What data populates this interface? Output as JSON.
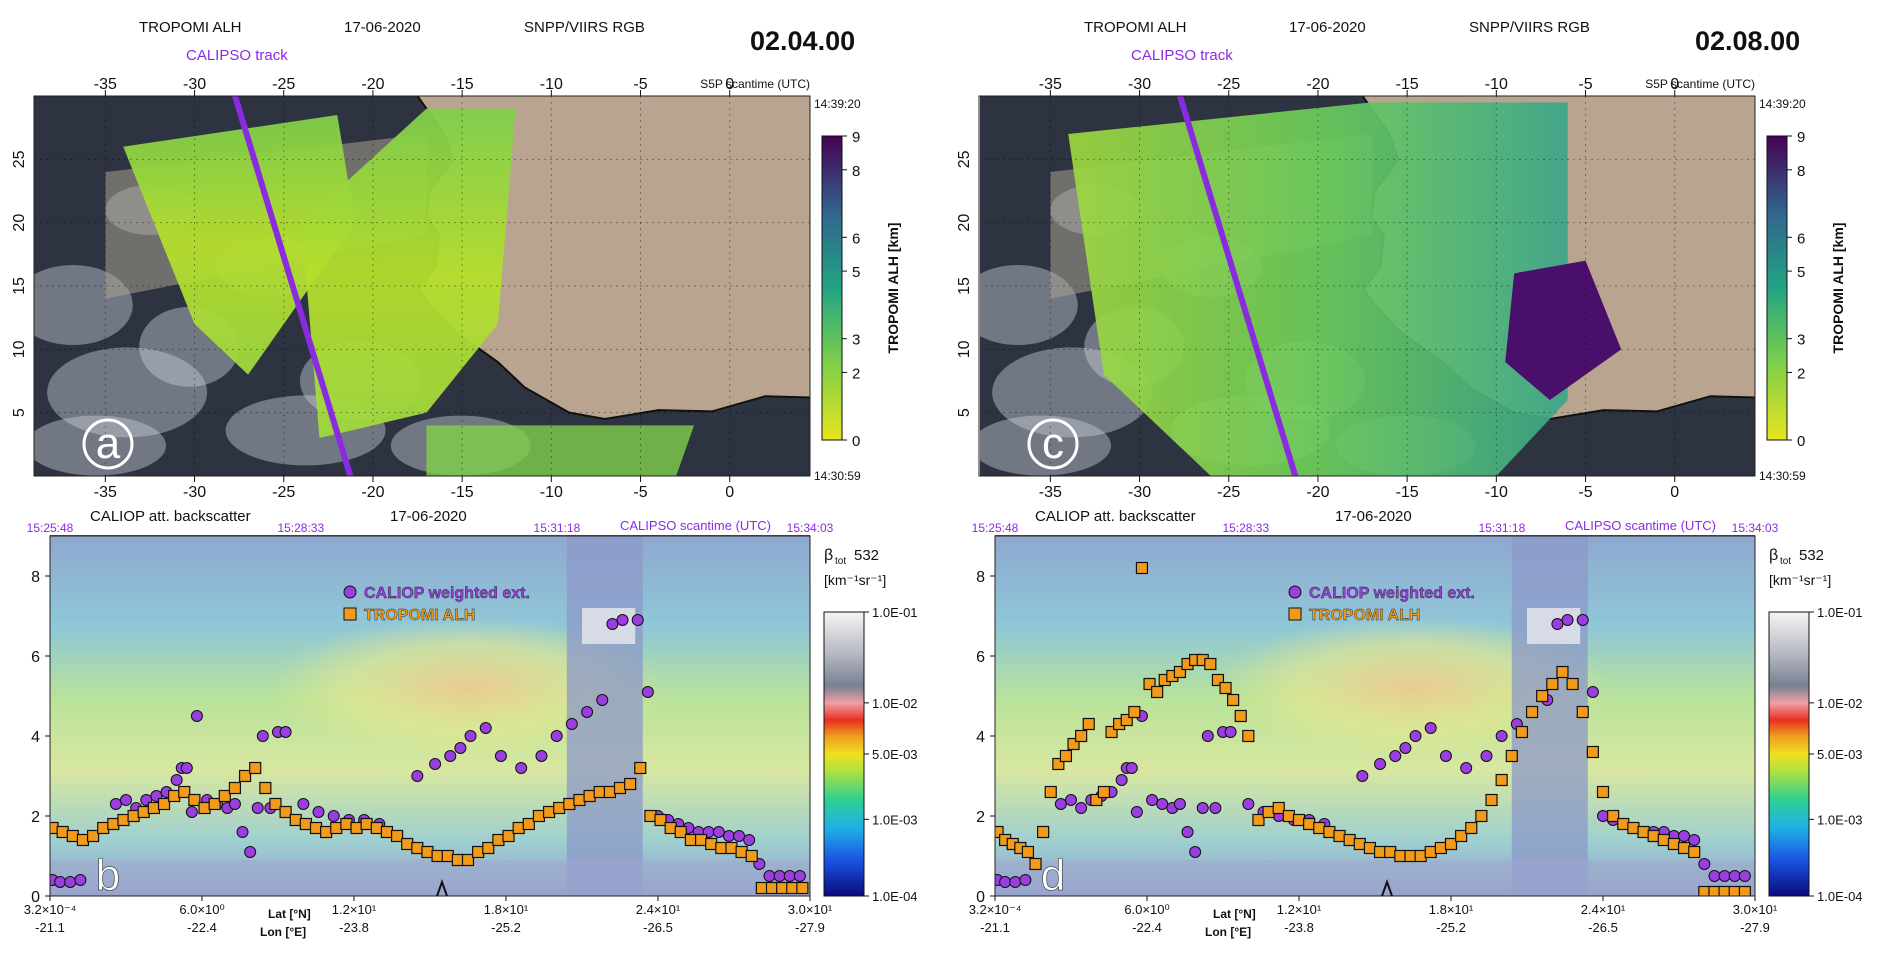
{
  "panels": [
    {
      "map": {
        "header_left": "TROPOMI ALH",
        "header_date": "17-06-2020",
        "header_rgb": "SNPP/VIIRS RGB",
        "track_label": "CALIPSO track",
        "time": "02.04.00",
        "scantime_label": "S5P scantime (UTC)",
        "scan_start": "14:39:20",
        "scan_end": "14:30:59",
        "panel_letter": "a"
      },
      "profile": {
        "title": "CALIOP att. backscatter",
        "date": "17-06-2020",
        "scantime_label": "CALIPSO scantime (UTC)",
        "top_times": [
          "15:25:48",
          "15:28:33",
          "15:31:18",
          "15:34:03"
        ],
        "panel_letter": "b"
      }
    },
    {
      "map": {
        "header_left": "TROPOMI ALH",
        "header_date": "17-06-2020",
        "header_rgb": "SNPP/VIIRS RGB",
        "track_label": "CALIPSO track",
        "time": "02.08.00",
        "scantime_label": "S5P scantime (UTC)",
        "scan_start": "14:39:20",
        "scan_end": "14:30:59",
        "panel_letter": "c"
      },
      "profile": {
        "title": "CALIOP att. backscatter",
        "date": "17-06-2020",
        "scantime_label": "CALIPSO scantime (UTC)",
        "top_times": [
          "15:25:48",
          "15:28:33",
          "15:31:18",
          "15:34:03"
        ],
        "panel_letter": "d"
      }
    }
  ],
  "colors": {
    "track": "#8a2be2",
    "circle": "#9a3ee0",
    "square": "#f29a1a",
    "land": "#b9a48f",
    "ocean": "#2d3340"
  },
  "chart_data": [
    {
      "type": "map",
      "x_ticks": [
        "-35",
        "-30",
        "-25",
        "-20",
        "-15",
        "-10",
        "-5",
        "0"
      ],
      "x_range": [
        -39,
        4.5
      ],
      "y_ticks": [
        "5",
        "10",
        "15",
        "20",
        "25"
      ],
      "y_range": [
        0,
        30
      ],
      "colorbar": {
        "label": "TROPOMI ALH [km]",
        "ticks": [
          "0",
          "2",
          "3",
          "5",
          "6",
          "8",
          "9"
        ],
        "range": [
          0,
          9
        ],
        "colormap": "viridis_r"
      }
    },
    {
      "type": "map",
      "x_ticks": [
        "-35",
        "-30",
        "-25",
        "-20",
        "-15",
        "-10",
        "-5",
        "0"
      ],
      "x_range": [
        -39,
        4.5
      ],
      "y_ticks": [
        "5",
        "10",
        "15",
        "20",
        "25"
      ],
      "y_range": [
        0,
        30
      ],
      "colorbar": {
        "label": "TROPOMI ALH [km]",
        "ticks": [
          "0",
          "2",
          "3",
          "5",
          "6",
          "8",
          "9"
        ],
        "range": [
          0,
          9
        ],
        "colormap": "viridis_r"
      }
    },
    {
      "type": "scatter",
      "ylim": [
        0,
        9
      ],
      "y_ticks": [
        "0",
        "2",
        "4",
        "6",
        "8"
      ],
      "x_range": [
        0.00032,
        30
      ],
      "x_ticks": {
        "lat": [
          "3.2×10⁻⁴",
          "6.0×10⁰",
          "1.2×10¹",
          "1.8×10¹",
          "2.4×10¹",
          "3.0×10¹"
        ],
        "lon": [
          "-21.1",
          "-22.4",
          "-23.8",
          "-25.2",
          "-26.5",
          "-27.9"
        ],
        "axis_label_lat": "Lat [°N]",
        "axis_label_lon": "Lon [°E]"
      },
      "colorbar": {
        "label_main": "β",
        "label_sub": "tot",
        "label_num": "532",
        "unit": "[km⁻¹sr⁻¹]",
        "ticks": [
          "1.0E-01",
          "1.0E-02",
          "5.0E-03",
          "1.0E-03",
          "1.0E-04"
        ]
      },
      "series": [
        {
          "name": "CALIOP weighted ext.",
          "marker": "circle",
          "x": [
            0.1,
            0.4,
            0.8,
            1.2,
            2.6,
            3.0,
            3.4,
            3.8,
            4.2,
            4.6,
            5.0,
            5.2,
            5.4,
            5.6,
            5.8,
            6.2,
            6.6,
            7.0,
            7.3,
            7.6,
            7.9,
            8.2,
            8.4,
            8.7,
            9.0,
            9.3,
            10.0,
            10.6,
            11.2,
            11.8,
            12.4,
            13.0,
            14.5,
            15.2,
            15.8,
            16.2,
            16.6,
            17.2,
            17.8,
            18.6,
            19.4,
            20.0,
            20.6,
            21.2,
            21.8,
            22.2,
            22.6,
            23.2,
            23.6,
            24.0,
            24.4,
            24.8,
            25.2,
            25.6,
            26.0,
            26.4,
            26.8,
            27.2,
            27.6,
            28.0,
            28.4,
            28.8,
            29.2,
            29.6
          ],
          "y": [
            0.4,
            0.35,
            0.35,
            0.4,
            2.3,
            2.4,
            2.2,
            2.4,
            2.5,
            2.6,
            2.9,
            3.2,
            3.2,
            2.1,
            4.5,
            2.4,
            2.3,
            2.2,
            2.3,
            1.6,
            1.1,
            2.2,
            4.0,
            2.2,
            4.1,
            4.1,
            2.3,
            2.1,
            2.0,
            1.9,
            1.9,
            1.8,
            3.0,
            3.3,
            3.5,
            3.7,
            4.0,
            4.2,
            3.5,
            3.2,
            3.5,
            4.0,
            4.3,
            4.6,
            4.9,
            6.8,
            6.9,
            6.9,
            5.1,
            2.0,
            1.9,
            1.8,
            1.7,
            1.6,
            1.6,
            1.6,
            1.5,
            1.5,
            1.4,
            0.8,
            0.5,
            0.5,
            0.5,
            0.5
          ]
        },
        {
          "name": "TROPOMI ALH",
          "marker": "square",
          "x": [
            0.1,
            0.5,
            0.9,
            1.3,
            1.7,
            2.1,
            2.5,
            2.9,
            3.3,
            3.7,
            4.1,
            4.5,
            4.9,
            5.3,
            5.7,
            6.1,
            6.5,
            6.9,
            7.3,
            7.7,
            8.1,
            8.5,
            8.9,
            9.3,
            9.7,
            10.1,
            10.5,
            10.9,
            11.3,
            11.7,
            12.1,
            12.5,
            12.9,
            13.3,
            13.7,
            14.1,
            14.5,
            14.9,
            15.3,
            15.7,
            16.1,
            16.5,
            16.9,
            17.3,
            17.7,
            18.1,
            18.5,
            18.9,
            19.3,
            19.7,
            20.1,
            20.5,
            20.9,
            21.3,
            21.7,
            22.1,
            22.5,
            22.9,
            23.3,
            23.7,
            24.1,
            24.5,
            24.9,
            25.3,
            25.7,
            26.1,
            26.5,
            26.9,
            27.3,
            27.7,
            28.1,
            28.5,
            28.9,
            29.3,
            29.7
          ],
          "y": [
            1.7,
            1.6,
            1.5,
            1.4,
            1.5,
            1.7,
            1.8,
            1.9,
            2.0,
            2.1,
            2.2,
            2.3,
            2.5,
            2.6,
            2.4,
            2.2,
            2.3,
            2.5,
            2.7,
            3.0,
            3.2,
            2.7,
            2.3,
            2.1,
            1.9,
            1.8,
            1.7,
            1.6,
            1.7,
            1.8,
            1.7,
            1.8,
            1.7,
            1.6,
            1.5,
            1.3,
            1.2,
            1.1,
            1.0,
            1.0,
            0.9,
            0.9,
            1.1,
            1.2,
            1.4,
            1.5,
            1.7,
            1.8,
            2.0,
            2.1,
            2.2,
            2.3,
            2.4,
            2.5,
            2.6,
            2.6,
            2.7,
            2.8,
            3.2,
            2.0,
            1.9,
            1.7,
            1.6,
            1.4,
            1.4,
            1.3,
            1.2,
            1.2,
            1.1,
            1.0,
            0.2,
            0.2,
            0.2,
            0.2,
            0.2
          ]
        }
      ]
    },
    {
      "type": "scatter",
      "ylim": [
        0,
        9
      ],
      "y_ticks": [
        "0",
        "2",
        "4",
        "6",
        "8"
      ],
      "x_range": [
        0.00032,
        30
      ],
      "x_ticks": {
        "lat": [
          "3.2×10⁻⁴",
          "6.0×10⁰",
          "1.2×10¹",
          "1.8×10¹",
          "2.4×10¹",
          "3.0×10¹"
        ],
        "lon": [
          "-21.1",
          "-22.4",
          "-23.8",
          "-25.2",
          "-26.5",
          "-27.9"
        ],
        "axis_label_lat": "Lat [°N]",
        "axis_label_lon": "Lon [°E]"
      },
      "colorbar": {
        "label_main": "β",
        "label_sub": "tot",
        "label_num": "532",
        "unit": "[km⁻¹sr⁻¹]",
        "ticks": [
          "1.0E-01",
          "1.0E-02",
          "5.0E-03",
          "1.0E-03",
          "1.0E-04"
        ]
      },
      "series": [
        {
          "name": "CALIOP weighted ext.",
          "marker": "circle",
          "x": [
            0.1,
            0.4,
            0.8,
            1.2,
            2.6,
            3.0,
            3.4,
            3.8,
            4.2,
            4.6,
            5.0,
            5.2,
            5.4,
            5.6,
            5.8,
            6.2,
            6.6,
            7.0,
            7.3,
            7.6,
            7.9,
            8.2,
            8.4,
            8.7,
            9.0,
            9.3,
            10.0,
            10.6,
            11.2,
            11.8,
            12.4,
            13.0,
            14.5,
            15.2,
            15.8,
            16.2,
            16.6,
            17.2,
            17.8,
            18.6,
            19.4,
            20.0,
            20.6,
            21.2,
            21.8,
            22.2,
            22.6,
            23.2,
            23.6,
            24.0,
            24.4,
            24.8,
            25.2,
            25.6,
            26.0,
            26.4,
            26.8,
            27.2,
            27.6,
            28.0,
            28.4,
            28.8,
            29.2,
            29.6
          ],
          "y": [
            0.4,
            0.35,
            0.35,
            0.4,
            2.3,
            2.4,
            2.2,
            2.4,
            2.5,
            2.6,
            2.9,
            3.2,
            3.2,
            2.1,
            4.5,
            2.4,
            2.3,
            2.2,
            2.3,
            1.6,
            1.1,
            2.2,
            4.0,
            2.2,
            4.1,
            4.1,
            2.3,
            2.1,
            2.0,
            1.9,
            1.9,
            1.8,
            3.0,
            3.3,
            3.5,
            3.7,
            4.0,
            4.2,
            3.5,
            3.2,
            3.5,
            4.0,
            4.3,
            4.6,
            4.9,
            6.8,
            6.9,
            6.9,
            5.1,
            2.0,
            1.9,
            1.8,
            1.7,
            1.6,
            1.6,
            1.6,
            1.5,
            1.5,
            1.4,
            0.8,
            0.5,
            0.5,
            0.5,
            0.5
          ]
        },
        {
          "name": "TROPOMI ALH",
          "marker": "square",
          "x": [
            0.1,
            0.4,
            0.7,
            1.0,
            1.3,
            1.6,
            1.9,
            2.2,
            2.5,
            2.8,
            3.1,
            3.4,
            3.7,
            4.0,
            4.3,
            4.6,
            4.9,
            5.2,
            5.5,
            5.8,
            6.1,
            6.4,
            6.7,
            7.0,
            7.3,
            7.6,
            7.9,
            8.2,
            8.5,
            8.8,
            9.1,
            9.4,
            9.7,
            10.0,
            10.4,
            10.8,
            11.2,
            11.6,
            12.0,
            12.4,
            12.8,
            13.2,
            13.6,
            14.0,
            14.4,
            14.8,
            15.2,
            15.6,
            16.0,
            16.4,
            16.8,
            17.2,
            17.6,
            18.0,
            18.4,
            18.8,
            19.2,
            19.6,
            20.0,
            20.4,
            20.8,
            21.2,
            21.6,
            22.0,
            22.4,
            22.8,
            23.2,
            23.6,
            24.0,
            24.4,
            24.8,
            25.2,
            25.6,
            26.0,
            26.4,
            26.8,
            27.2,
            27.6,
            28.0,
            28.4,
            28.8,
            29.2,
            29.6
          ],
          "y": [
            1.6,
            1.4,
            1.3,
            1.2,
            1.1,
            0.8,
            1.6,
            2.6,
            3.3,
            3.5,
            3.8,
            4.0,
            4.3,
            2.4,
            2.6,
            4.1,
            4.3,
            4.4,
            4.6,
            8.2,
            5.3,
            5.1,
            5.4,
            5.5,
            5.6,
            5.8,
            5.9,
            5.9,
            5.8,
            5.4,
            5.2,
            4.9,
            4.5,
            4.0,
            1.9,
            2.1,
            2.2,
            2.0,
            1.9,
            1.8,
            1.7,
            1.6,
            1.5,
            1.4,
            1.3,
            1.2,
            1.1,
            1.1,
            1.0,
            1.0,
            1.0,
            1.1,
            1.2,
            1.3,
            1.5,
            1.7,
            2.0,
            2.4,
            2.9,
            3.5,
            4.1,
            4.6,
            5.0,
            5.3,
            5.6,
            5.3,
            4.6,
            3.6,
            2.6,
            2.0,
            1.8,
            1.7,
            1.6,
            1.5,
            1.4,
            1.3,
            1.2,
            1.1,
            0.1,
            0.1,
            0.1,
            0.1,
            0.1
          ]
        }
      ]
    }
  ]
}
